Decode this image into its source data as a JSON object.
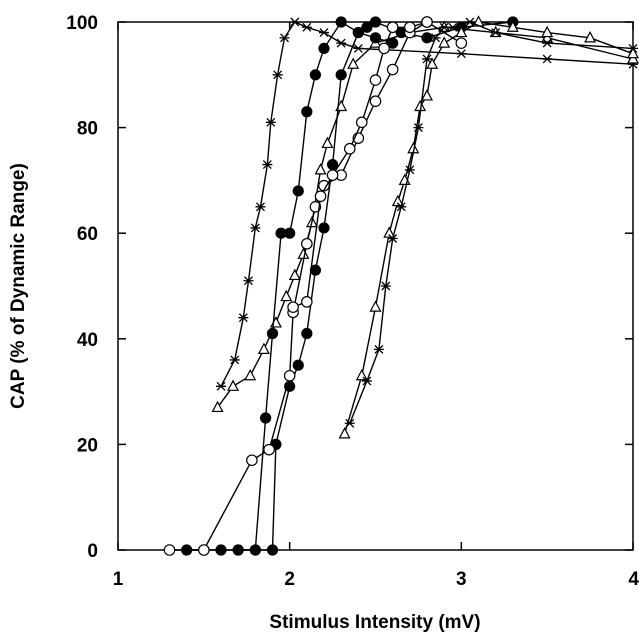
{
  "chart_data": {
    "type": "line",
    "title": "",
    "xlabel": "Stimulus Intensity (mV)",
    "ylabel": "CAP (% of Dynamic Range)",
    "xlim": [
      1,
      4
    ],
    "ylim": [
      0,
      100
    ],
    "x_ticks": [
      1,
      2,
      3,
      4
    ],
    "y_ticks": [
      0,
      20,
      40,
      60,
      80,
      100
    ],
    "x_tick_labels": [
      "1",
      "2",
      "3",
      "4"
    ],
    "y_tick_labels": [
      "0",
      "20",
      "40",
      "60",
      "80",
      "100"
    ],
    "grid": false,
    "legend": "none",
    "series": [
      {
        "marker": "asterisk",
        "x": [
          1.6,
          1.68,
          1.73,
          1.76,
          1.8,
          1.83,
          1.87,
          1.89,
          1.93,
          1.97,
          2.03,
          2.1,
          2.2,
          2.3,
          2.4,
          3.0,
          3.5,
          4.0
        ],
        "y": [
          31,
          36,
          44,
          51,
          61,
          65,
          73,
          81,
          90,
          97,
          100,
          99,
          98,
          96,
          95,
          94,
          93,
          92
        ]
      },
      {
        "marker": "triangle",
        "x": [
          1.58,
          1.67,
          1.77,
          1.85,
          1.92,
          1.98,
          2.03,
          2.08,
          2.13,
          2.18,
          2.22,
          2.3,
          2.37,
          2.5,
          2.7,
          2.9,
          3.2,
          3.5,
          4.0
        ],
        "y": [
          27,
          31,
          33,
          38,
          43,
          48,
          52,
          56,
          62,
          72,
          77,
          84,
          92,
          96,
          98,
          99,
          98,
          97,
          93
        ]
      },
      {
        "marker": "filled-circle",
        "x": [
          1.4,
          1.5,
          1.6,
          1.7,
          1.8,
          1.86,
          1.9,
          1.95,
          2.0,
          2.05,
          2.1,
          2.15,
          2.2,
          2.3,
          2.4,
          2.45,
          2.5,
          2.65,
          2.8,
          3.0,
          3.3
        ],
        "y": [
          0,
          0,
          0,
          0,
          0,
          25,
          41,
          60,
          60,
          68,
          83,
          90,
          95,
          100,
          98,
          99,
          100,
          98,
          97,
          99,
          100
        ]
      },
      {
        "marker": "filled-circle",
        "x": [
          1.7,
          1.8,
          1.9,
          1.92,
          2.0,
          2.05,
          2.1,
          2.15,
          2.2,
          2.25,
          2.3,
          2.4,
          2.5,
          2.6
        ],
        "y": [
          0,
          0,
          0,
          20,
          31,
          35,
          41,
          53,
          61,
          73,
          90,
          98,
          97,
          96
        ]
      },
      {
        "marker": "open-circle",
        "x": [
          1.3,
          1.5,
          1.78,
          1.88,
          2.0,
          2.02,
          2.1,
          2.15,
          2.2,
          2.3,
          2.4,
          2.5,
          2.6,
          2.7,
          2.8,
          3.0
        ],
        "y": [
          0,
          0,
          17,
          19,
          33,
          45,
          58,
          65,
          69,
          71,
          78,
          85,
          91,
          98,
          100,
          96
        ]
      },
      {
        "marker": "open-circle",
        "x": [
          2.02,
          2.1,
          2.18,
          2.25,
          2.35,
          2.42,
          2.5,
          2.55,
          2.6,
          2.7,
          2.8
        ],
        "y": [
          46,
          47,
          67,
          71,
          76,
          81,
          89,
          95,
          99,
          99,
          100
        ]
      },
      {
        "marker": "triangle",
        "x": [
          2.32,
          2.42,
          2.5,
          2.58,
          2.63,
          2.67,
          2.72,
          2.76,
          2.8,
          2.83,
          2.9,
          3.0,
          3.1,
          3.3,
          3.5,
          3.75,
          4.0
        ],
        "y": [
          22,
          33,
          46,
          60,
          66,
          70,
          76,
          84,
          86,
          92,
          96,
          98,
          100,
          99,
          98,
          97,
          94
        ]
      },
      {
        "marker": "asterisk",
        "x": [
          2.35,
          2.45,
          2.52,
          2.56,
          2.6,
          2.65,
          2.7,
          2.75,
          2.8,
          2.85,
          2.9,
          2.95,
          3.05,
          3.2,
          3.5,
          4.0
        ],
        "y": [
          24,
          32,
          38,
          50,
          59,
          65,
          72,
          80,
          93,
          97,
          99,
          99,
          100,
          98,
          96,
          95
        ]
      }
    ]
  }
}
